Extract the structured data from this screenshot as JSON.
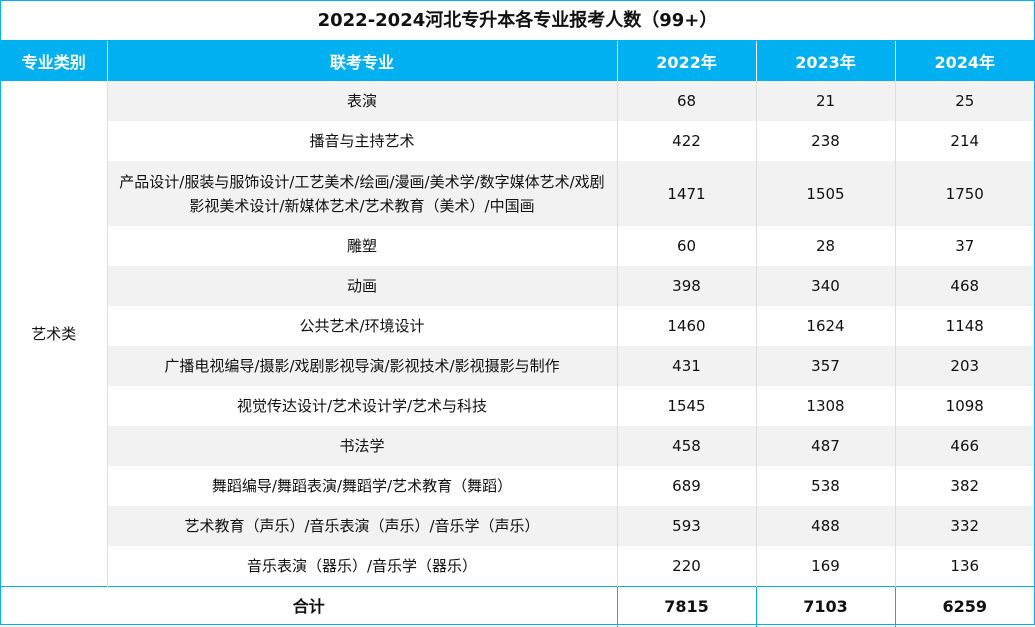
{
  "title": "2022-2024河北专升本各专业报考人数（99+）",
  "headers": [
    "专业类别",
    "联考专业",
    "2022年",
    "2023年",
    "2024年"
  ],
  "category": "艺术类",
  "rows": [
    {
      "major": "表演",
      "y2022": "68",
      "y2023": "21",
      "y2024": "25"
    },
    {
      "major": "播音与主持艺术",
      "y2022": "422",
      "y2023": "238",
      "y2024": "214"
    },
    {
      "major": "产品设计/服装与服饰设计/工艺美术/绘画/漫画/美术学/数字媒体艺术/戏剧影视美术设计/新媒体艺术/艺术教育（美术）/中国画",
      "y2022": "1471",
      "y2023": "1505",
      "y2024": "1750"
    },
    {
      "major": "雕塑",
      "y2022": "60",
      "y2023": "28",
      "y2024": "37"
    },
    {
      "major": "动画",
      "y2022": "398",
      "y2023": "340",
      "y2024": "468"
    },
    {
      "major": "公共艺术/环境设计",
      "y2022": "1460",
      "y2023": "1624",
      "y2024": "1148"
    },
    {
      "major": "广播电视编导/摄影/戏剧影视导演/影视技术/影视摄影与制作",
      "y2022": "431",
      "y2023": "357",
      "y2024": "203"
    },
    {
      "major": "视觉传达设计/艺术设计学/艺术与科技",
      "y2022": "1545",
      "y2023": "1308",
      "y2024": "1098"
    },
    {
      "major": "书法学",
      "y2022": "458",
      "y2023": "487",
      "y2024": "466"
    },
    {
      "major": "舞蹈编导/舞蹈表演/舞蹈学/艺术教育（舞蹈）",
      "y2022": "689",
      "y2023": "538",
      "y2024": "382"
    },
    {
      "major": "艺术教育（声乐）/音乐表演（声乐）/音乐学（声乐）",
      "y2022": "593",
      "y2023": "488",
      "y2024": "332"
    },
    {
      "major": "音乐表演（器乐）/音乐学（器乐）",
      "y2022": "220",
      "y2023": "169",
      "y2024": "136"
    }
  ],
  "total": {
    "label": "合计",
    "y2022": "7815",
    "y2023": "7103",
    "y2024": "6259"
  }
}
